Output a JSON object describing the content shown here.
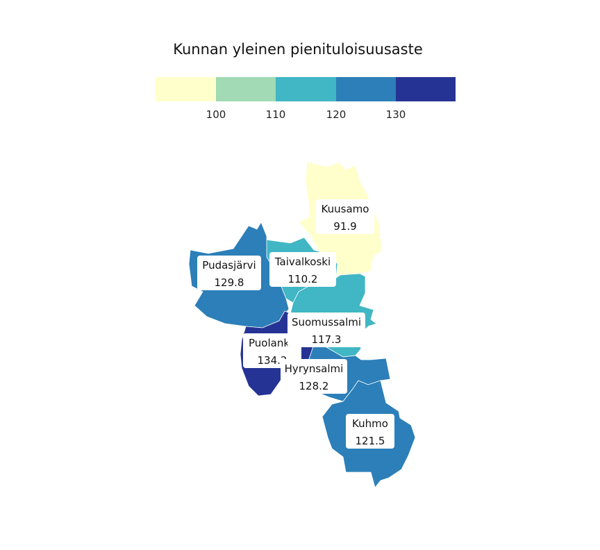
{
  "legend": {
    "title": "Kunnan yleinen pienituloisuusaste",
    "colors": [
      "#ffffcc",
      "#a1dab4",
      "#41b6c4",
      "#2c7fb8",
      "#253494"
    ],
    "ticks": [
      "100",
      "110",
      "120",
      "130"
    ]
  },
  "municipalities": [
    {
      "name": "Kuusamo",
      "value": "91.9",
      "color": "#ffffcc"
    },
    {
      "name": "Taivalkoski",
      "value": "110.2",
      "color": "#41b6c4"
    },
    {
      "name": "Pudasjärvi",
      "value": "129.8",
      "color": "#2c7fb8"
    },
    {
      "name": "Suomussalmi",
      "value": "117.3",
      "color": "#41b6c4"
    },
    {
      "name": "Puolanka",
      "value": "134.2",
      "color": "#253494"
    },
    {
      "name": "Hyrynsalmi",
      "value": "128.2",
      "color": "#2c7fb8"
    },
    {
      "name": "Kuhmo",
      "value": "121.5",
      "color": "#2c7fb8"
    }
  ]
}
